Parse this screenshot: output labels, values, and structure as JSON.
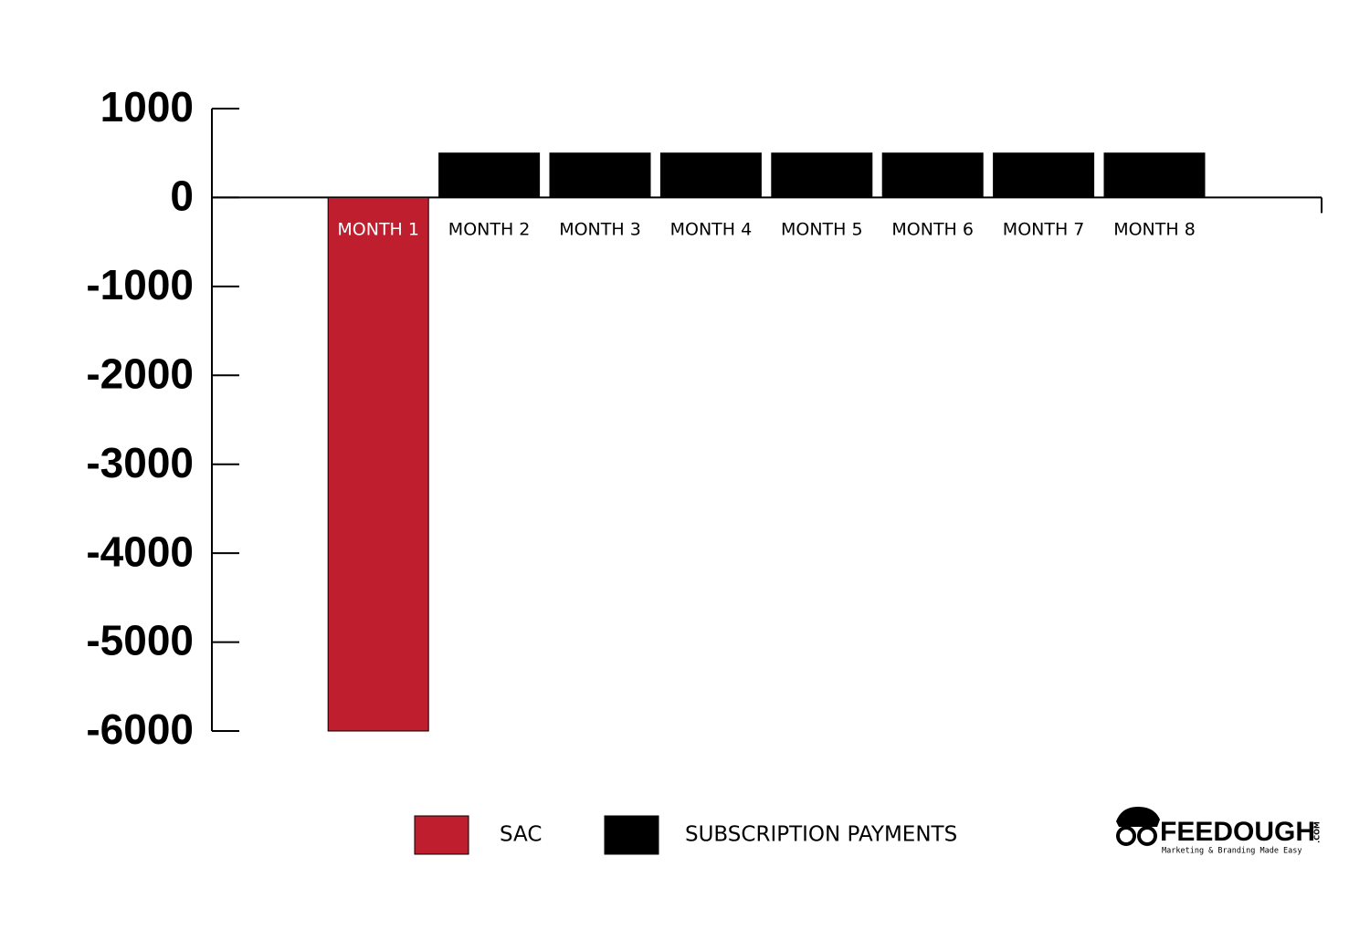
{
  "chart_data": {
    "type": "bar",
    "categories": [
      "MONTH 1",
      "MONTH 2",
      "MONTH 3",
      "MONTH 4",
      "MONTH 5",
      "MONTH 6",
      "MONTH 7",
      "MONTH 8"
    ],
    "series": [
      {
        "name": "SAC",
        "color": "#be1e2d",
        "values": [
          -6000,
          null,
          null,
          null,
          null,
          null,
          null,
          null
        ]
      },
      {
        "name": "SUBSCRIPTION PAYMENTS",
        "color": "#000000",
        "values": [
          null,
          500,
          500,
          500,
          500,
          500,
          500,
          500
        ]
      }
    ],
    "ylim": [
      -6000,
      1000
    ],
    "yticks": [
      -6000,
      -5000,
      -4000,
      -3000,
      -2000,
      -1000,
      0,
      1000
    ],
    "legend": "bottom",
    "grid": false
  },
  "logo": {
    "name": "FEEDOUGH",
    "suffix": ".COM",
    "tagline": "Marketing & Branding Made Easy"
  }
}
